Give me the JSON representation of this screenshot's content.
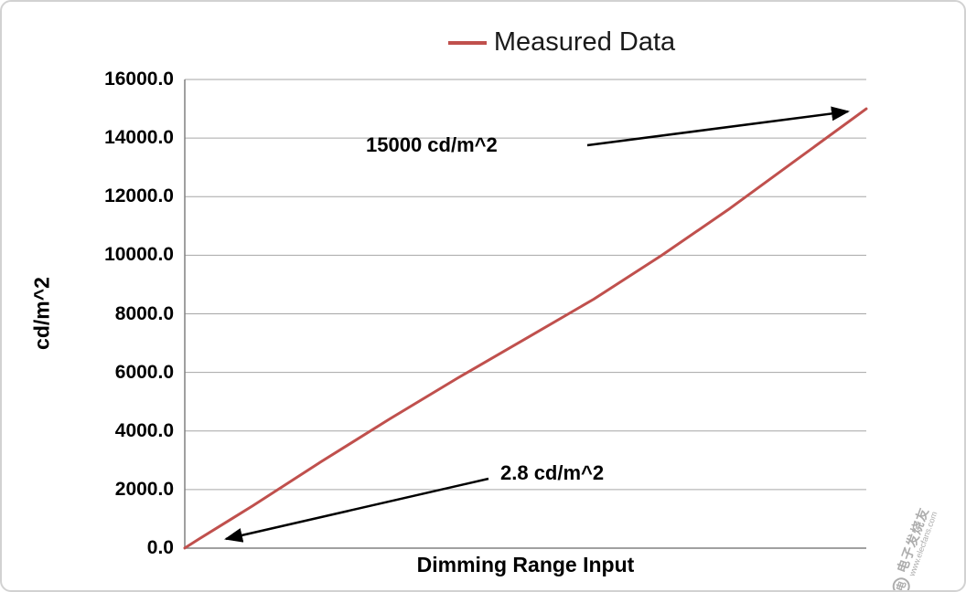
{
  "legend": {
    "label": "Measured Data",
    "line_color": "#c0504d"
  },
  "axes": {
    "y_title": "cd/m^2",
    "x_title": "Dimming Range Input",
    "y_tick_labels": [
      "16000.0",
      "14000.0",
      "12000.0",
      "10000.0",
      "8000.0",
      "6000.0",
      "4000.0",
      "2000.0",
      "0.0"
    ]
  },
  "annotations": {
    "max": {
      "label": "15000 cd/m^2"
    },
    "min": {
      "label": "2.8 cd/m^2"
    }
  },
  "watermark": {
    "brand": "电子发烧友",
    "url": "www.elecfans.com"
  },
  "colors": {
    "series": "#c0504d",
    "grid": "#a6a6a6",
    "axis": "#808080",
    "arrow": "#000000"
  },
  "chart_data": {
    "type": "line",
    "title": "",
    "xlabel": "Dimming Range Input",
    "ylabel": "cd/m^2",
    "ylim": [
      0,
      16000
    ],
    "y_tick_step": 2000,
    "x_axis_note": "normalized dimming range input (0 = minimum, 1 = maximum), no tick labels shown",
    "grid": "horizontal",
    "legend_position": "top-center",
    "series": [
      {
        "name": "Measured Data",
        "color": "#c0504d",
        "x": [
          0,
          0.02,
          0.1,
          0.2,
          0.3,
          0.4,
          0.5,
          0.6,
          0.7,
          0.8,
          0.9,
          1.0
        ],
        "y": [
          2.8,
          300,
          1450,
          2950,
          4400,
          5800,
          7150,
          8500,
          10000,
          11600,
          13300,
          15000
        ]
      }
    ],
    "annotations": [
      {
        "text": "15000 cd/m^2",
        "target": {
          "x": 1.0,
          "y": 15000
        }
      },
      {
        "text": "2.8 cd/m^2",
        "target": {
          "x": 0.0,
          "y": 2.8
        }
      }
    ]
  }
}
